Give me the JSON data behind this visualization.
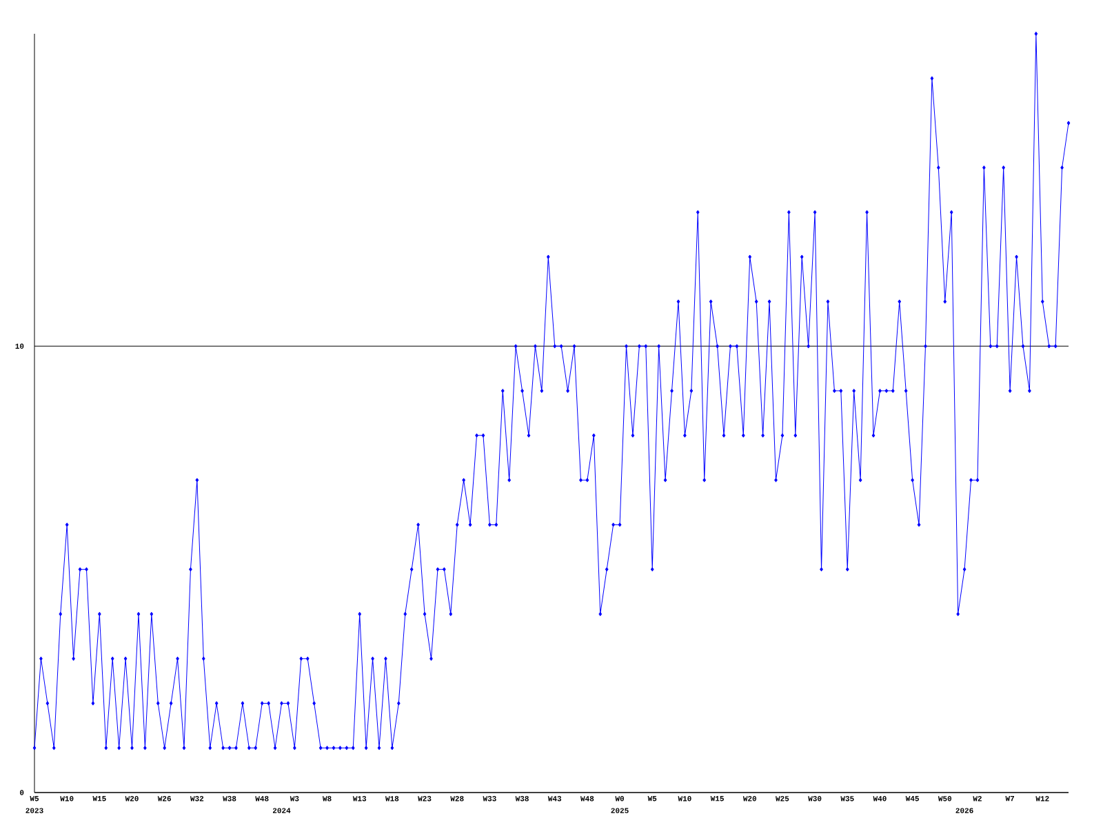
{
  "chart_data": {
    "type": "line",
    "color": "#0000ff",
    "marker": "diamond",
    "grid": "y",
    "categories": [
      "W5",
      null,
      null,
      null,
      null,
      "W10",
      null,
      null,
      null,
      null,
      "W15",
      null,
      null,
      null,
      null,
      "W20",
      null,
      null,
      null,
      null,
      "W26",
      null,
      null,
      null,
      null,
      "W32",
      null,
      null,
      null,
      null,
      "W38",
      null,
      null,
      null,
      null,
      "W48",
      null,
      null,
      null,
      null,
      "W3",
      null,
      null,
      null,
      null,
      "W8",
      null,
      null,
      null,
      null,
      "W13",
      null,
      null,
      null,
      null,
      "W18",
      null,
      null,
      null,
      null,
      "W23",
      null,
      null,
      null,
      null,
      "W28",
      null,
      null,
      null,
      null,
      "W33",
      null,
      null,
      null,
      null,
      "W38",
      null,
      null,
      null,
      null,
      "W43",
      null,
      null,
      null,
      null,
      "W48",
      null,
      null,
      null,
      null,
      "W0",
      null,
      null,
      null,
      null,
      "W5",
      null,
      null,
      null,
      null,
      "W10",
      null,
      null,
      null,
      null,
      "W15",
      null,
      null,
      null,
      null,
      "W20",
      null,
      null,
      null,
      null,
      "W25",
      null,
      null,
      null,
      null,
      "W30",
      null,
      null,
      null,
      null,
      "W35",
      null,
      null,
      null,
      null,
      "W40",
      null,
      null,
      null,
      null,
      "W45",
      null,
      null,
      null,
      null,
      "W50",
      null,
      null,
      null,
      null,
      "W2",
      null,
      null,
      null,
      null,
      "W7",
      null,
      null,
      null,
      null,
      "W12",
      null,
      null,
      null,
      null
    ],
    "values": [
      1,
      3,
      2,
      1,
      4,
      6,
      3,
      5,
      5,
      2,
      4,
      1,
      3,
      1,
      3,
      1,
      4,
      1,
      4,
      2,
      1,
      2,
      3,
      1,
      5,
      7,
      3,
      1,
      2,
      1,
      1,
      1,
      2,
      1,
      1,
      2,
      2,
      1,
      2,
      2,
      1,
      3,
      3,
      2,
      1,
      1,
      1,
      1,
      1,
      1,
      4,
      1,
      3,
      1,
      3,
      1,
      2,
      4,
      5,
      6,
      4,
      3,
      5,
      5,
      4,
      6,
      7,
      6,
      8,
      8,
      6,
      6,
      9,
      7,
      10,
      9,
      8,
      10,
      9,
      12,
      10,
      10,
      9,
      10,
      7,
      7,
      8,
      4,
      5,
      6,
      6,
      10,
      8,
      10,
      10,
      5,
      10,
      7,
      9,
      11,
      8,
      9,
      13,
      7,
      11,
      10,
      8,
      10,
      10,
      8,
      12,
      11,
      8,
      11,
      7,
      8,
      13,
      8,
      12,
      10,
      13,
      5,
      11,
      9,
      9,
      5,
      9,
      7,
      13,
      8,
      9,
      9,
      9,
      11,
      9,
      7,
      6,
      10,
      16,
      14,
      11,
      13,
      4,
      5,
      7,
      7,
      14,
      10,
      10,
      14,
      9,
      12,
      10,
      9,
      17,
      11,
      10,
      10,
      14,
      15
    ],
    "ylim": [
      0,
      17
    ],
    "yticks": [
      0,
      10
    ],
    "annotations": [
      "2023",
      "2024",
      "2025",
      "2026"
    ]
  }
}
